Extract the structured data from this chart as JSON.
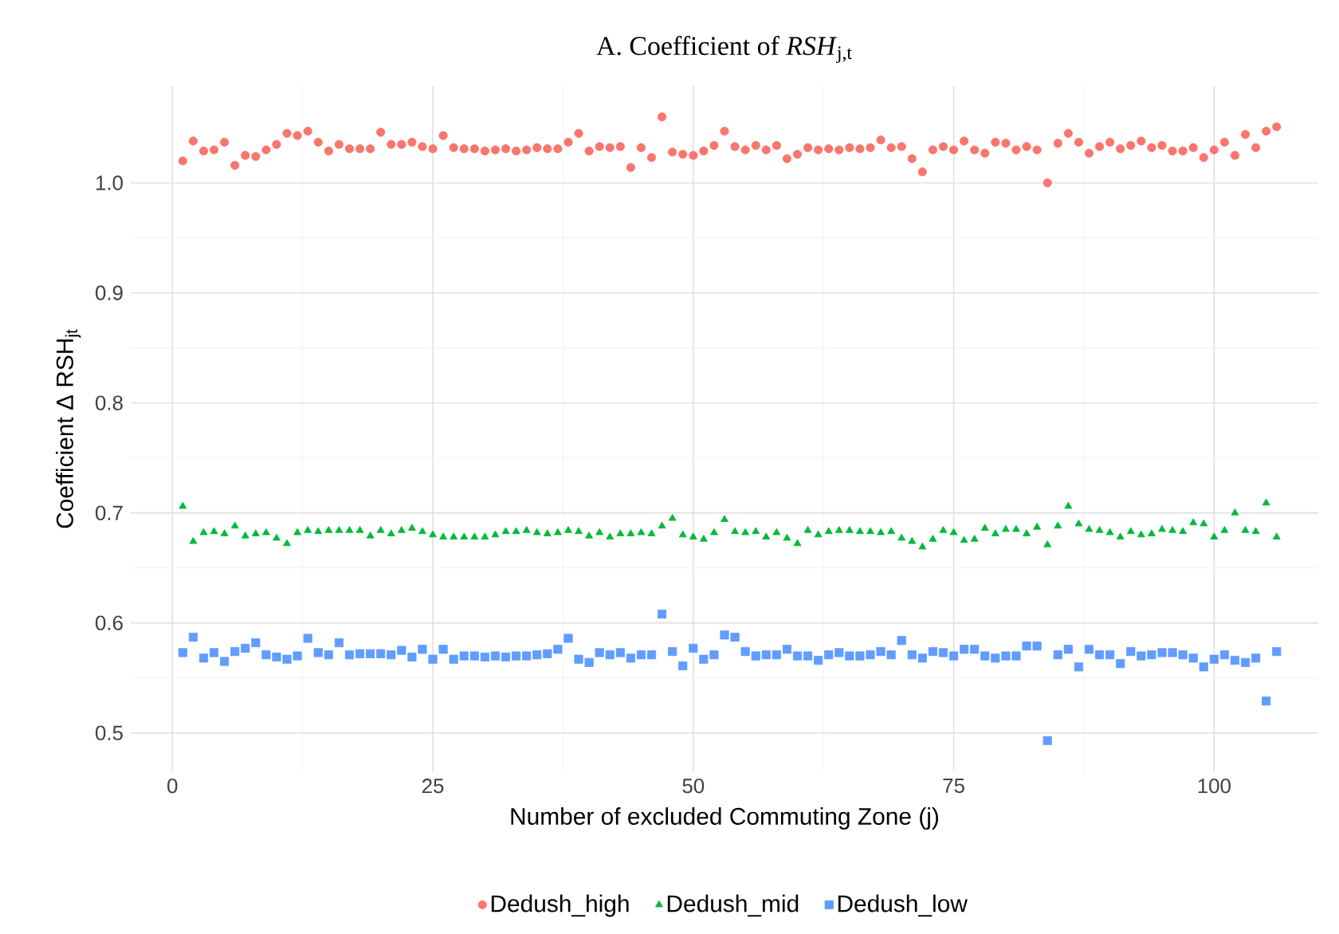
{
  "chart_data": {
    "type": "scatter",
    "title": "A. Coefficient of *RSH*$_{j,t}$",
    "xlabel": "Number of excluded Commuting Zone (j)",
    "ylabel": "Coefficient Δ RSH$_{jt}$",
    "x": [
      1,
      2,
      3,
      4,
      5,
      6,
      7,
      8,
      9,
      10,
      11,
      12,
      13,
      14,
      15,
      16,
      17,
      18,
      19,
      20,
      21,
      22,
      23,
      24,
      25,
      26,
      27,
      28,
      29,
      30,
      31,
      32,
      33,
      34,
      35,
      36,
      37,
      38,
      39,
      40,
      41,
      42,
      43,
      44,
      45,
      46,
      47,
      48,
      49,
      50,
      51,
      52,
      53,
      54,
      55,
      56,
      57,
      58,
      59,
      60,
      61,
      62,
      63,
      64,
      65,
      66,
      67,
      68,
      69,
      70,
      71,
      72,
      73,
      74,
      75,
      76,
      77,
      78,
      79,
      80,
      81,
      82,
      83,
      84,
      85,
      86,
      87,
      88,
      89,
      90,
      91,
      92,
      93,
      94,
      95,
      96,
      97,
      98,
      99,
      100,
      101,
      102,
      103,
      104,
      105,
      106
    ],
    "series": [
      {
        "name": "Dedush_high",
        "color": "#f8766d",
        "marker": "circle",
        "values": [
          1.02,
          1.038,
          1.029,
          1.03,
          1.037,
          1.016,
          1.025,
          1.024,
          1.03,
          1.035,
          1.045,
          1.043,
          1.047,
          1.037,
          1.029,
          1.035,
          1.031,
          1.031,
          1.031,
          1.046,
          1.035,
          1.035,
          1.037,
          1.033,
          1.031,
          1.043,
          1.032,
          1.031,
          1.031,
          1.029,
          1.03,
          1.031,
          1.029,
          1.03,
          1.032,
          1.031,
          1.031,
          1.037,
          1.045,
          1.029,
          1.033,
          1.032,
          1.033,
          1.014,
          1.032,
          1.023,
          1.06,
          1.028,
          1.026,
          1.025,
          1.029,
          1.034,
          1.047,
          1.033,
          1.03,
          1.034,
          1.03,
          1.034,
          1.022,
          1.026,
          1.032,
          1.03,
          1.031,
          1.03,
          1.032,
          1.031,
          1.032,
          1.039,
          1.032,
          1.033,
          1.022,
          1.01,
          1.03,
          1.033,
          1.03,
          1.038,
          1.03,
          1.027,
          1.037,
          1.036,
          1.03,
          1.033,
          1.03,
          1.0,
          1.036,
          1.045,
          1.037,
          1.027,
          1.033,
          1.037,
          1.031,
          1.034,
          1.038,
          1.032,
          1.034,
          1.029,
          1.029,
          1.032,
          1.023,
          1.03,
          1.037,
          1.025,
          1.044,
          1.032,
          1.047,
          1.051
        ]
      },
      {
        "name": "Dedush_mid",
        "color": "#00ba38",
        "marker": "triangle",
        "values": [
          0.706,
          0.674,
          0.682,
          0.683,
          0.681,
          0.688,
          0.679,
          0.681,
          0.682,
          0.677,
          0.672,
          0.682,
          0.684,
          0.683,
          0.684,
          0.684,
          0.684,
          0.684,
          0.679,
          0.684,
          0.681,
          0.684,
          0.686,
          0.683,
          0.68,
          0.678,
          0.678,
          0.678,
          0.678,
          0.678,
          0.68,
          0.683,
          0.683,
          0.684,
          0.682,
          0.681,
          0.682,
          0.684,
          0.683,
          0.679,
          0.682,
          0.678,
          0.681,
          0.681,
          0.682,
          0.681,
          0.688,
          0.695,
          0.68,
          0.678,
          0.676,
          0.682,
          0.694,
          0.683,
          0.682,
          0.683,
          0.678,
          0.682,
          0.677,
          0.672,
          0.684,
          0.68,
          0.683,
          0.684,
          0.684,
          0.683,
          0.683,
          0.682,
          0.683,
          0.677,
          0.674,
          0.669,
          0.676,
          0.684,
          0.682,
          0.675,
          0.676,
          0.686,
          0.681,
          0.685,
          0.685,
          0.681,
          0.687,
          0.671,
          0.688,
          0.706,
          0.69,
          0.685,
          0.684,
          0.682,
          0.678,
          0.683,
          0.68,
          0.681,
          0.685,
          0.684,
          0.683,
          0.691,
          0.69,
          0.678,
          0.684,
          0.7,
          0.684,
          0.683,
          0.709,
          0.678
        ]
      },
      {
        "name": "Dedush_low",
        "color": "#619cff",
        "marker": "square",
        "values": [
          0.573,
          0.587,
          0.568,
          0.573,
          0.565,
          0.574,
          0.577,
          0.582,
          0.571,
          0.569,
          0.567,
          0.57,
          0.586,
          0.573,
          0.571,
          0.582,
          0.571,
          0.572,
          0.572,
          0.572,
          0.571,
          0.575,
          0.569,
          0.576,
          0.567,
          0.576,
          0.567,
          0.57,
          0.57,
          0.569,
          0.57,
          0.569,
          0.57,
          0.57,
          0.571,
          0.572,
          0.576,
          0.586,
          0.567,
          0.564,
          0.573,
          0.571,
          0.573,
          0.568,
          0.571,
          0.571,
          0.608,
          0.574,
          0.561,
          0.577,
          0.567,
          0.571,
          0.589,
          0.587,
          0.574,
          0.57,
          0.571,
          0.571,
          0.576,
          0.57,
          0.57,
          0.566,
          0.571,
          0.573,
          0.57,
          0.57,
          0.571,
          0.574,
          0.571,
          0.584,
          0.571,
          0.568,
          0.574,
          0.573,
          0.57,
          0.576,
          0.576,
          0.57,
          0.568,
          0.57,
          0.57,
          0.579,
          0.579,
          0.493,
          0.571,
          0.576,
          0.56,
          0.576,
          0.571,
          0.571,
          0.563,
          0.574,
          0.57,
          0.571,
          0.573,
          0.573,
          0.571,
          0.568,
          0.56,
          0.567,
          0.571,
          0.566,
          0.564,
          0.568,
          0.529,
          0.574
        ]
      }
    ],
    "xlim": [
      -4,
      110
    ],
    "ylim": [
      0.465,
      1.088
    ],
    "xticks": [
      0,
      25,
      50,
      75,
      100
    ],
    "yticks": [
      0.5,
      0.6,
      0.7,
      0.8,
      0.9,
      {
        "value": 1,
        "label": "1.0"
      }
    ],
    "grid": true,
    "legend": "bottom"
  }
}
